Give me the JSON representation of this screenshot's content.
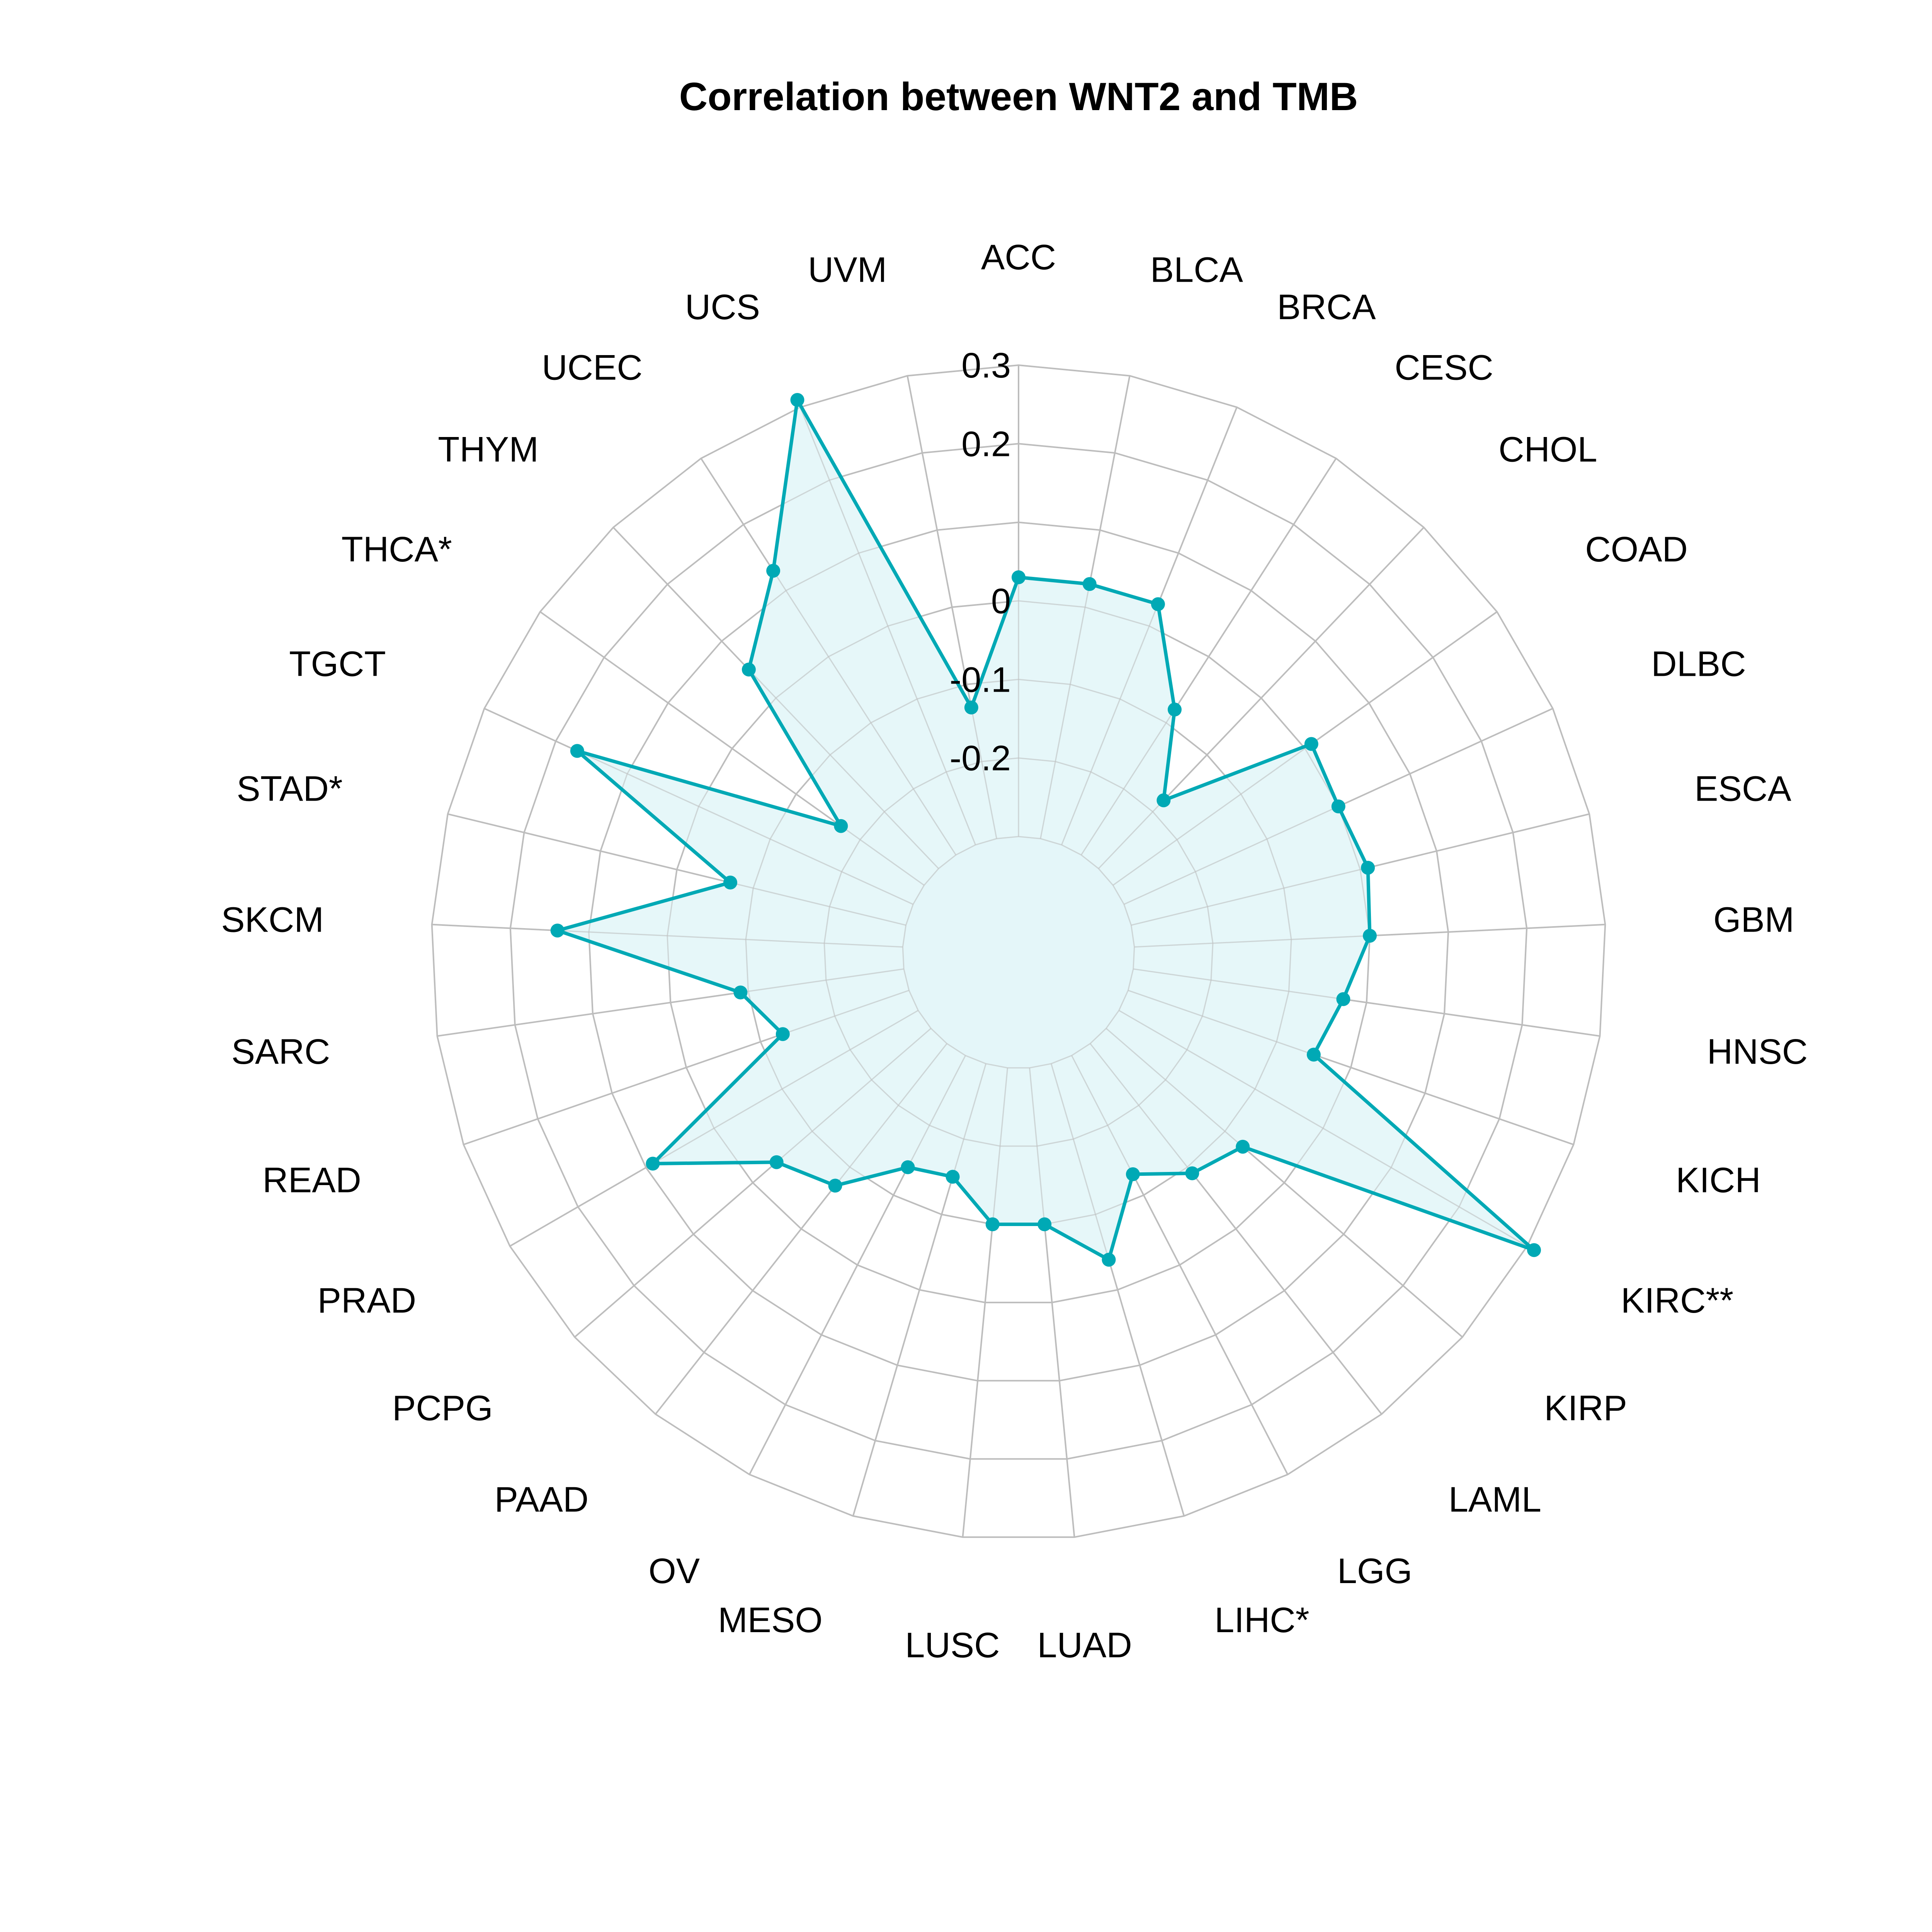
{
  "colors": {
    "series": "#00A9B5",
    "fill": "#E3F6F8",
    "grid": "#BDBDBD"
  },
  "chart_data": {
    "type": "radar",
    "title": "Correlation between WNT2 and TMB",
    "categories": [
      "ACC",
      "BLCA",
      "BRCA",
      "CESC",
      "CHOL",
      "COAD",
      "DLBC",
      "ESCA",
      "GBM",
      "HNSC",
      "KICH",
      "KIRC**",
      "KIRP",
      "LAML",
      "LGG",
      "LIHC*",
      "LUAD",
      "LUSC",
      "MESO",
      "OV",
      "PAAD",
      "PCPG",
      "PRAD",
      "READ",
      "SARC",
      "SKCM",
      "STAD*",
      "TGCT",
      "THCA*",
      "THYM",
      "UCEC",
      "UCS",
      "UVM"
    ],
    "values": [
      0.03,
      0.03,
      0.03,
      -0.08,
      -0.18,
      0.01,
      0.0,
      0.01,
      0.0,
      -0.03,
      -0.05,
      0.31,
      -0.07,
      -0.09,
      -0.13,
      -0.04,
      -0.1,
      -0.1,
      -0.15,
      -0.14,
      -0.07,
      -0.04,
      0.09,
      -0.13,
      -0.09,
      0.14,
      -0.07,
      0.17,
      -0.17,
      0.05,
      0.13,
      0.31,
      -0.13
    ],
    "radial_ticks": [
      -0.2,
      -0.1,
      0,
      0.2,
      0.3
    ],
    "tick_labels": [
      "-0.2",
      "-0.1",
      "0",
      "0.2",
      "0.3"
    ],
    "rmin": -0.3,
    "rmax": 0.3,
    "grid": true
  }
}
